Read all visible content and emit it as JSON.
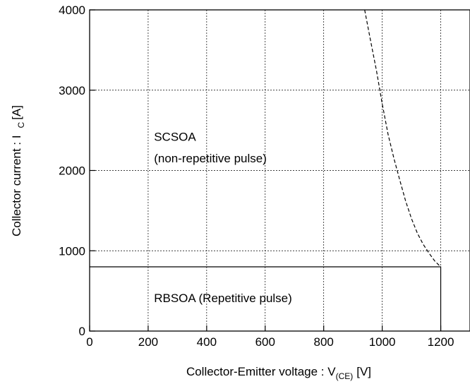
{
  "chart_data": {
    "type": "line",
    "xlim": [
      0,
      1300
    ],
    "ylim": [
      0,
      4000
    ],
    "x_ticks": [
      0,
      200,
      400,
      600,
      800,
      1000,
      1200
    ],
    "y_ticks": [
      0,
      1000,
      2000,
      3000,
      4000
    ],
    "grid": true,
    "xlabel": {
      "main": "Collector-Emitter voltage : V",
      "subscript": "(CE)",
      "unit": "[V]"
    },
    "ylabel": {
      "main": "Collector current : I",
      "subscript": "C",
      "unit": "[A]"
    },
    "series": [
      {
        "name": "RBSOA (Repetitive pulse)",
        "style": "solid",
        "x": [
          0,
          1200,
          1200
        ],
        "y": [
          800,
          800,
          0
        ]
      },
      {
        "name": "SCSOA (non-repetitive pulse)",
        "style": "dashed",
        "x": [
          940,
          960,
          980,
          1000,
          1020,
          1040,
          1060,
          1080,
          1100,
          1120,
          1140,
          1160,
          1180,
          1200
        ],
        "y": [
          4000,
          3620,
          3250,
          2830,
          2450,
          2150,
          1880,
          1620,
          1400,
          1220,
          1080,
          970,
          870,
          800
        ]
      }
    ],
    "annotations": [
      {
        "text": "SCSOA",
        "x": 220,
        "y": 2370
      },
      {
        "text": "(non-repetitive pulse)",
        "x": 220,
        "y": 2100
      },
      {
        "text": "RBSOA (Repetitive pulse)",
        "x": 220,
        "y": 360
      }
    ]
  }
}
